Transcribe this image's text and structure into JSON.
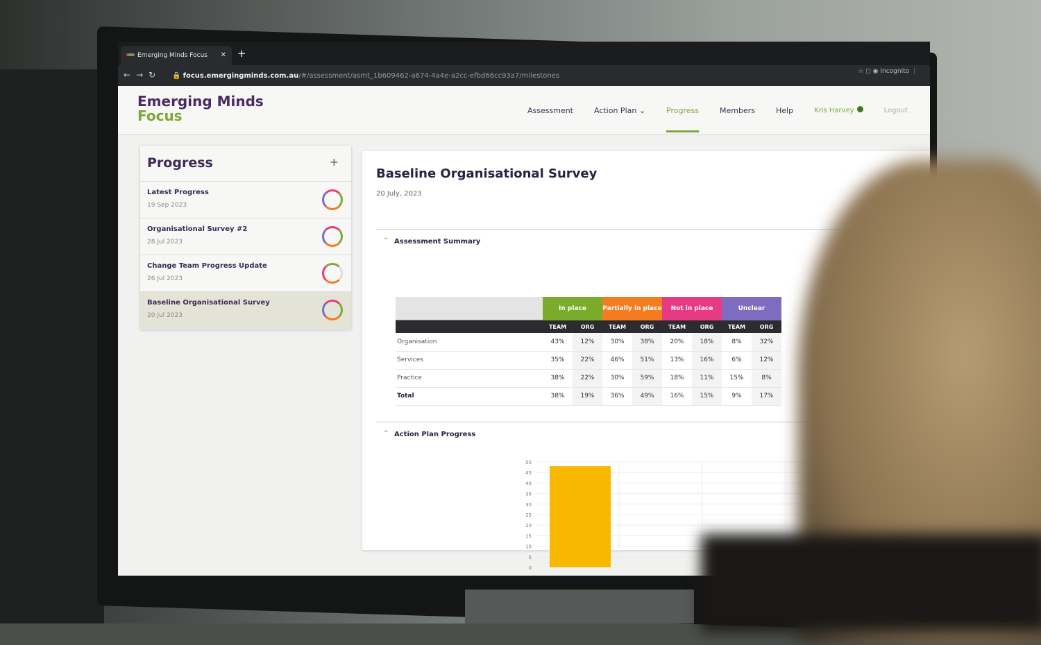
{
  "browser": {
    "tab_title": "Emerging Minds Focus",
    "url_host": "focus.emergingminds.com.au",
    "url_path": "/#/assessment/asmt_1b609462-a674-4a4e-a2cc-efbd66cc93a7/milestones",
    "profile": "Incognito"
  },
  "app": {
    "logo_line1": "Emerging Minds",
    "logo_line2": "Focus",
    "nav": [
      "Assessment",
      "Action Plan ⌄",
      "Progress",
      "Members",
      "Help"
    ],
    "active_nav": "Progress",
    "user": "Kris Harvey",
    "logout": "Logout"
  },
  "sidebar": {
    "title": "Progress",
    "add": "+",
    "items": [
      {
        "title": "Latest Progress",
        "date": "19 Sep 2023"
      },
      {
        "title": "Organisational Survey #2",
        "date": "28 Jul 2023"
      },
      {
        "title": "Change Team Progress Update",
        "date": "26 Jul 2023"
      },
      {
        "title": "Baseline Organisational Survey",
        "date": "20 Jul 2023",
        "selected": true
      }
    ]
  },
  "main": {
    "title": "Baseline Organisational Survey",
    "date": "20 July, 2023",
    "summary_title": "Assessment Summary",
    "action_title": "Action Plan Progress",
    "groups": [
      {
        "label": "In place",
        "color": "#7aab2a"
      },
      {
        "label": "Partially in place",
        "color": "#f47b20"
      },
      {
        "label": "Not in place",
        "color": "#e63b82"
      },
      {
        "label": "Unclear",
        "color": "#7d6cc0"
      }
    ],
    "sub": [
      "TEAM",
      "ORG"
    ],
    "rows": [
      {
        "label": "Organisation",
        "values": [
          "43%",
          "12%",
          "30%",
          "38%",
          "20%",
          "18%",
          "8%",
          "32%"
        ]
      },
      {
        "label": "Services",
        "values": [
          "35%",
          "22%",
          "46%",
          "51%",
          "13%",
          "16%",
          "6%",
          "12%"
        ]
      },
      {
        "label": "Practice",
        "values": [
          "38%",
          "22%",
          "30%",
          "59%",
          "18%",
          "11%",
          "15%",
          "8%"
        ]
      },
      {
        "label": "Total",
        "values": [
          "38%",
          "19%",
          "36%",
          "49%",
          "16%",
          "15%",
          "9%",
          "17%"
        ]
      }
    ]
  },
  "chart_data": {
    "type": "bar",
    "values": [
      48
    ],
    "ylim": [
      0,
      50
    ],
    "yticks": [
      0,
      5,
      10,
      15,
      20,
      25,
      30,
      35,
      40,
      45,
      50
    ],
    "color": "#f8b800",
    "grid": true
  }
}
